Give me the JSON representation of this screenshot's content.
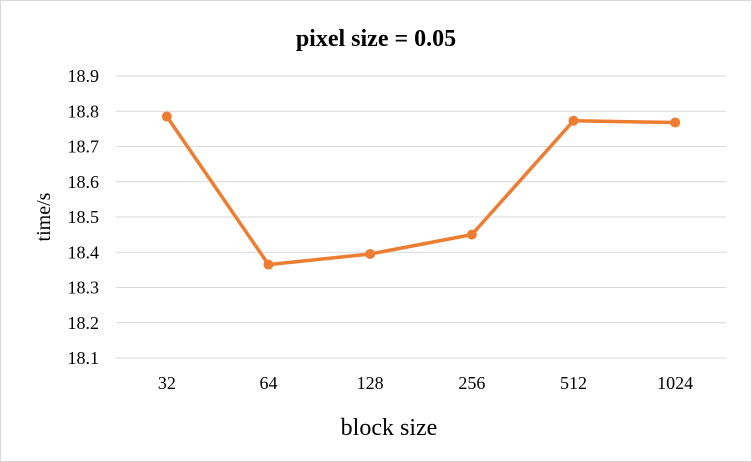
{
  "chart_data": {
    "type": "line",
    "title": "pixel size = 0.05",
    "xlabel": "block size",
    "ylabel": "time/s",
    "categories": [
      "32",
      "64",
      "128",
      "256",
      "512",
      "1024"
    ],
    "series": [
      {
        "values": [
          18.785,
          18.365,
          18.395,
          18.45,
          18.773,
          18.768
        ],
        "color": "#ED7D31"
      }
    ],
    "ylim": [
      18.1,
      18.9
    ],
    "yticks": [
      "18.1",
      "18.2",
      "18.3",
      "18.4",
      "18.5",
      "18.6",
      "18.7",
      "18.8",
      "18.9"
    ],
    "grid": true,
    "legend": "none"
  }
}
